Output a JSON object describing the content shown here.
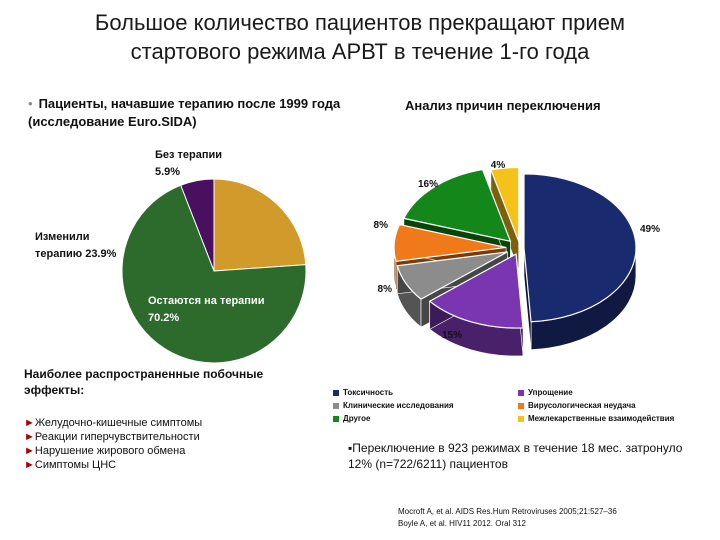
{
  "slide": {
    "title_line1": "Большое количество пациентов прекращают прием",
    "title_line2": "стартового  режима АРВТ в течение 1-го года",
    "bullet_left": "Пациенты, начавшие терапию после 1999 года (исследование Euro.SIDA)",
    "right_heading": "Анализ причин переключения",
    "side_effects_heading": "Наиболее распространенные побочные эффекты:",
    "side_effects": [
      "Желудочно-кишечные симптомы",
      "Реакции гиперчувствительности",
      "Нарушение жирового обмена",
      "Симптомы ЦНС"
    ],
    "switch_note": "Переключение в 923 режимах в течение 18 мес. затронуло 12% (n=722/6211) пациентов",
    "references": [
      "Mocroft A, et al. AIDS Res.Hum Retroviruses 2005;21:527–36",
      "Boyle A, et al. HIV11 2012. Oral 312"
    ]
  },
  "chart_data": [
    {
      "type": "pie",
      "slices": [
        {
          "label": "Без терапии",
          "value": 5.9,
          "value_text": "5.9%",
          "color": "#4a1060"
        },
        {
          "label": "Изменили терапию",
          "value": 23.9,
          "value_text": "23.9%",
          "color": "#d29a2a"
        },
        {
          "label": "Остаются на терапии",
          "value": 70.2,
          "value_text": "70.2%",
          "color": "#2c6b2c"
        }
      ]
    },
    {
      "type": "pie",
      "title": "Анализ причин переключения",
      "slices": [
        {
          "label": "Токсичность",
          "value": 49,
          "value_text": "49%",
          "color": "#1a2a6e"
        },
        {
          "label": "Упрощение",
          "value": 15,
          "value_text": "15%",
          "color": "#7a35b0"
        },
        {
          "label": "Клинические исследования",
          "value": 8,
          "value_text": "8%",
          "color": "#8c8c8c"
        },
        {
          "label": "Вирусологическая неудача",
          "value": 8,
          "value_text": "8%",
          "color": "#f07a1a"
        },
        {
          "label": "Другое",
          "value": 16,
          "value_text": "16%",
          "color": "#13871a"
        },
        {
          "label": "Межлекарственные взаимодействия",
          "value": 4,
          "value_text": "4%",
          "color": "#f5c21a"
        }
      ],
      "legend_position": "bottom"
    }
  ]
}
